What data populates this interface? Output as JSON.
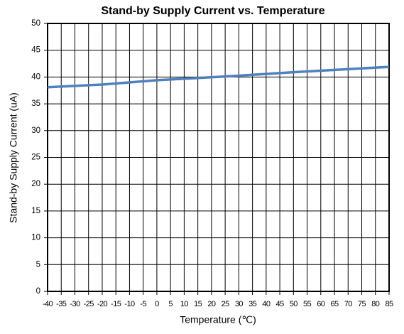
{
  "chart_data": {
    "type": "line",
    "title": "Stand-by Supply Current vs. Temperature",
    "x_label": "Temperature (℃)",
    "y_label": "Stand-by Supply Current (uA)",
    "series": [
      {
        "name": "Stand-by Supply Current",
        "color": "#4f81bd",
        "x": [
          -40,
          -20,
          0,
          25,
          50,
          85
        ],
        "values": [
          38.1,
          38.6,
          39.4,
          40.1,
          40.9,
          41.9
        ]
      }
    ],
    "xlim": [
      -40,
      85
    ],
    "xticks": [
      -40,
      -35,
      -30,
      -25,
      -20,
      -15,
      -10,
      -5,
      0,
      5,
      10,
      15,
      20,
      25,
      30,
      35,
      40,
      45,
      50,
      55,
      60,
      65,
      70,
      75,
      80,
      85
    ],
    "ylim": [
      0,
      50
    ],
    "yticks": [
      0,
      5,
      10,
      15,
      20,
      25,
      30,
      35,
      40,
      45,
      50
    ],
    "grid": true
  }
}
